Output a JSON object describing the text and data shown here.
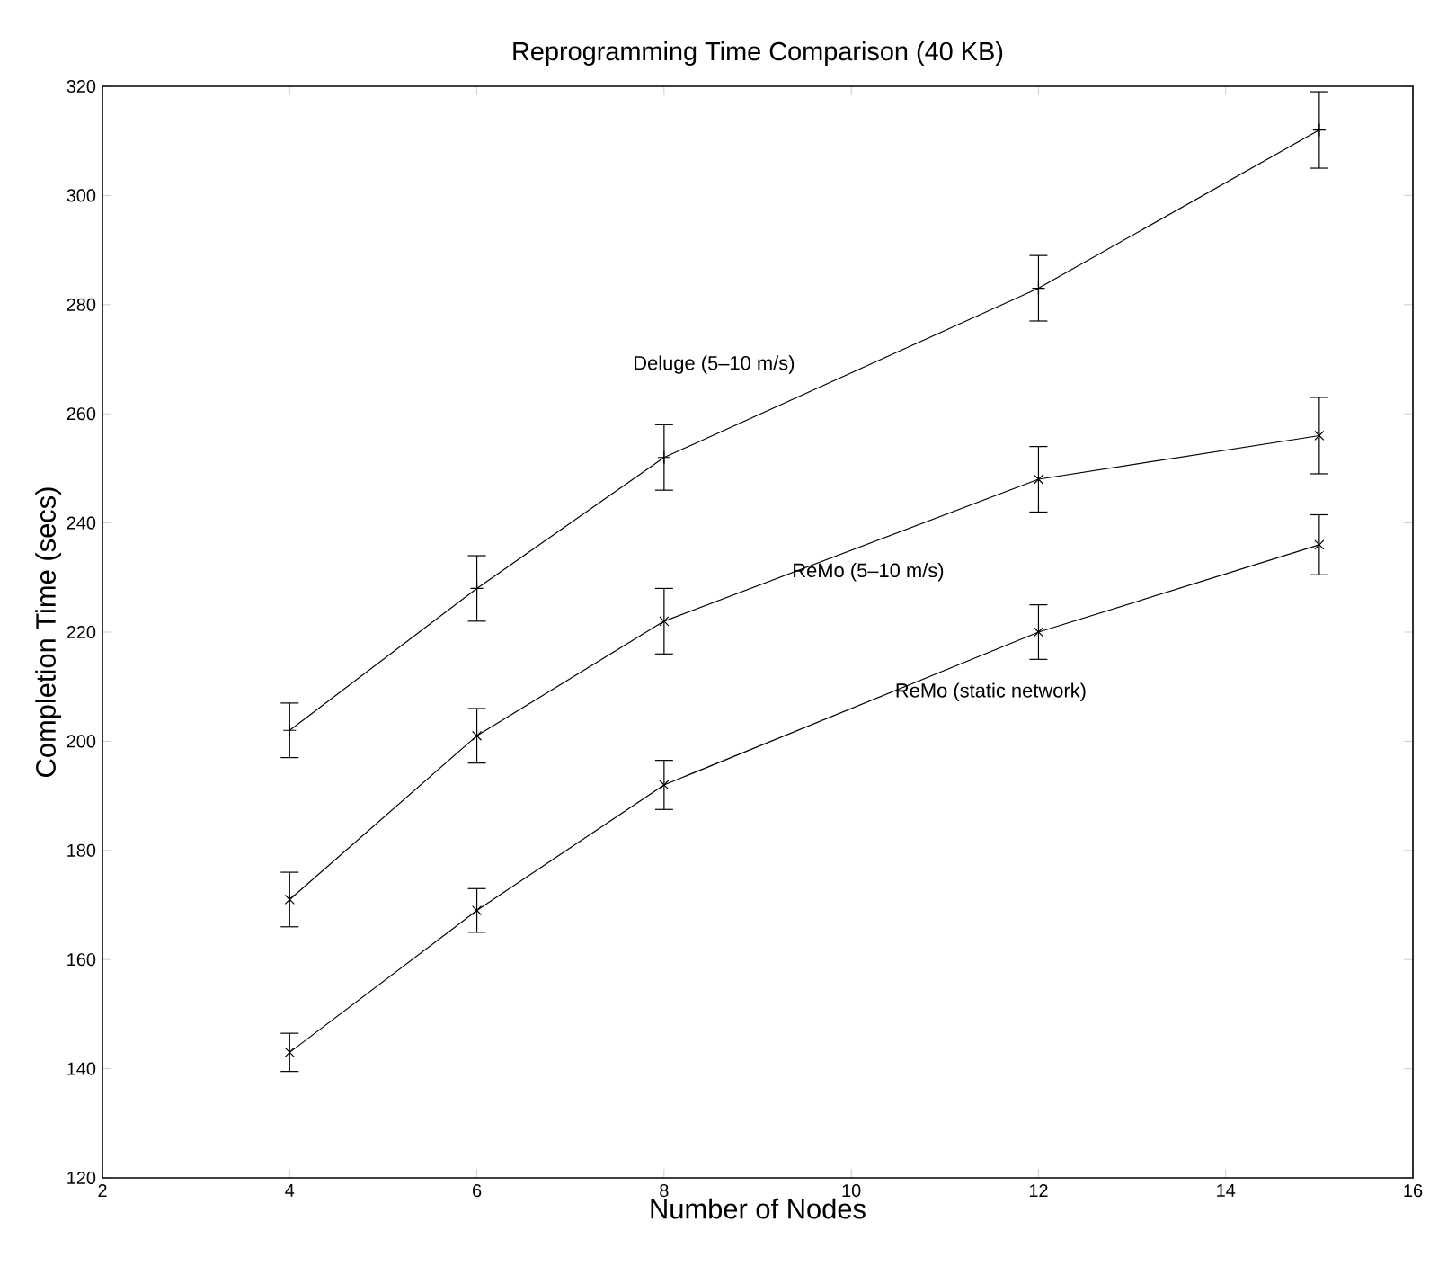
{
  "chart_data": {
    "type": "line",
    "title": "Reprogramming Time Comparison (40 KB)",
    "xlabel": "Number of Nodes",
    "ylabel": "Completion Time (secs)",
    "x": [
      4,
      6,
      8,
      12,
      15
    ],
    "series": [
      {
        "name": "Deluge (5–10 m/s)",
        "color": "#000000",
        "marker": "plus",
        "values": [
          202,
          228,
          252,
          283,
          312
        ],
        "errors": [
          5,
          6,
          6,
          6,
          7
        ]
      },
      {
        "name": "ReMo (5–10 m/s)",
        "color": "#000000",
        "marker": "cross",
        "values": [
          171,
          201,
          222,
          248,
          256
        ],
        "errors": [
          5,
          5,
          6,
          6,
          7
        ]
      },
      {
        "name": "ReMo (static network)",
        "color": "#000000",
        "marker": "cross",
        "values": [
          143,
          169,
          192,
          220,
          236
        ],
        "errors": [
          3.5,
          4,
          4.5,
          5,
          5.5
        ]
      }
    ],
    "xlim": [
      2,
      16
    ],
    "xticks": [
      2,
      4,
      6,
      8,
      10,
      12,
      14,
      16
    ],
    "ylim": [
      120,
      320
    ],
    "yticks": [
      120,
      140,
      160,
      180,
      200,
      220,
      240,
      260,
      280,
      300,
      320
    ],
    "grid": false,
    "legend": false,
    "line_style": "solid"
  }
}
